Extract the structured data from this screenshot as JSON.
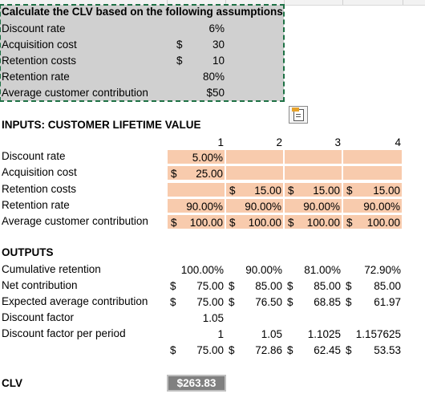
{
  "assumptions": {
    "title": "Calculate the CLV based on the following assumptions",
    "rows": [
      {
        "label": "Discount rate",
        "symbol": "",
        "value": "6%"
      },
      {
        "label": "Acquisition cost",
        "symbol": "$",
        "value": "30"
      },
      {
        "label": "Retention costs",
        "symbol": "$",
        "value": "10"
      },
      {
        "label": "Retention rate",
        "symbol": "",
        "value": "80%"
      },
      {
        "label": "Average customer contribution",
        "symbol": "",
        "value": "$50"
      }
    ]
  },
  "inputs": {
    "title": "INPUTS: CUSTOMER LIFETIME VALUE",
    "periods": [
      "1",
      "2",
      "3",
      "4"
    ],
    "rows": [
      {
        "label": "Discount rate",
        "cells": [
          {
            "text": "5.00%"
          },
          {},
          {},
          {}
        ]
      },
      {
        "label": "Acquisition cost",
        "cells": [
          {
            "sym": "$",
            "num": "25.00"
          },
          {},
          {},
          {}
        ]
      },
      {
        "label": "Retention costs",
        "cells": [
          {},
          {
            "sym": "$",
            "num": "15.00"
          },
          {
            "sym": "$",
            "num": "15.00"
          },
          {
            "sym": "$",
            "num": "15.00"
          }
        ]
      },
      {
        "label": "Retention rate",
        "cells": [
          {
            "text": "90.00%"
          },
          {
            "text": "90.00%"
          },
          {
            "text": "90.00%"
          },
          {
            "text": "90.00%"
          }
        ]
      },
      {
        "label": "Average customer contribution",
        "cells": [
          {
            "sym": "$",
            "num": "100.00"
          },
          {
            "sym": "$",
            "num": "100.00"
          },
          {
            "sym": "$",
            "num": "100.00"
          },
          {
            "sym": "$",
            "num": "100.00"
          }
        ]
      }
    ]
  },
  "outputs": {
    "title": "OUTPUTS",
    "rows": [
      {
        "label": "Cumulative retention",
        "cells": [
          {
            "text": "100.00%"
          },
          {
            "text": "90.00%"
          },
          {
            "text": "81.00%"
          },
          {
            "text": "72.90%"
          }
        ]
      },
      {
        "label": "Net contribution",
        "cells": [
          {
            "sym": "$",
            "num": "75.00"
          },
          {
            "sym": "$",
            "num": "85.00"
          },
          {
            "sym": "$",
            "num": "85.00"
          },
          {
            "sym": "$",
            "num": "85.00"
          }
        ]
      },
      {
        "label": "Expected average contribution",
        "cells": [
          {
            "sym": "$",
            "num": "75.00"
          },
          {
            "sym": "$",
            "num": "76.50"
          },
          {
            "sym": "$",
            "num": "68.85"
          },
          {
            "sym": "$",
            "num": "61.97"
          }
        ]
      },
      {
        "label": "Discount factor",
        "cells": [
          {
            "text": "1.05"
          },
          {},
          {},
          {}
        ]
      },
      {
        "label": "Discount factor per period",
        "cells": [
          {
            "text": "1"
          },
          {
            "text": "1.05"
          },
          {
            "text": "1.1025"
          },
          {
            "text": "1.157625"
          }
        ]
      },
      {
        "label": "",
        "cells": [
          {
            "sym": "$",
            "num": "75.00"
          },
          {
            "sym": "$",
            "num": "72.86"
          },
          {
            "sym": "$",
            "num": "62.45"
          },
          {
            "sym": "$",
            "num": "53.53"
          }
        ]
      }
    ]
  },
  "clv": {
    "label": "CLV",
    "value": "$263.83"
  },
  "colors": {
    "input_fill": "#f8cbad",
    "selection": "#1e7145",
    "clv_fill": "#808080"
  },
  "icons": {
    "paste_options": "paste-options-icon"
  }
}
